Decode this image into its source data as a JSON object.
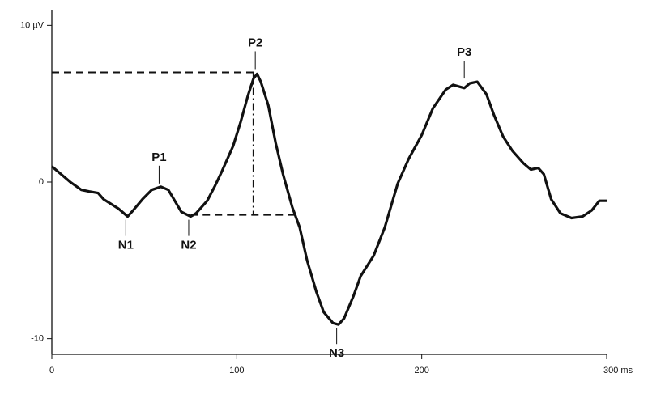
{
  "chart_data": {
    "type": "line",
    "x": [
      0,
      5,
      10,
      16,
      20,
      25,
      28,
      32,
      36,
      41,
      44,
      49,
      54,
      59,
      63,
      66,
      70,
      75,
      78,
      84,
      88,
      92,
      98,
      102,
      106,
      109,
      111,
      113,
      117,
      121,
      125,
      130,
      134,
      138,
      143,
      147,
      152,
      155,
      158,
      163,
      167,
      174,
      180,
      187,
      193,
      200,
      206,
      213,
      217,
      223,
      226,
      230,
      235,
      239,
      244,
      249,
      255,
      259,
      263,
      266,
      270,
      275,
      281,
      287,
      292,
      296,
      300
    ],
    "series": [
      {
        "color": "#111111",
        "values": [
          1.0,
          0.5,
          0,
          -0.5,
          -0.6,
          -0.7,
          -1.1,
          -1.4,
          -1.7,
          -2.2,
          -1.8,
          -1.1,
          -0.5,
          -0.3,
          -0.5,
          -1.1,
          -1.9,
          -2.2,
          -2.0,
          -1.2,
          -0.3,
          0.7,
          2.3,
          3.8,
          5.5,
          6.6,
          6.9,
          6.4,
          4.9,
          2.5,
          0.5,
          -1.6,
          -2.9,
          -5.0,
          -7.0,
          -8.3,
          -9.0,
          -9.1,
          -8.7,
          -7.3,
          -6.0,
          -4.7,
          -2.9,
          -0.1,
          1.5,
          3.0,
          4.7,
          5.9,
          6.2,
          6.0,
          6.3,
          6.4,
          5.6,
          4.3,
          2.9,
          2.0,
          1.2,
          0.8,
          0.9,
          0.5,
          -1.1,
          -2.0,
          -2.3,
          -2.2,
          -1.8,
          -1.2,
          -1.2
        ]
      }
    ],
    "xlim": [
      0,
      300
    ],
    "ylim": [
      -11,
      11
    ],
    "xticks": [
      0,
      100,
      200,
      {
        "value": 300,
        "label": "300 ms"
      }
    ],
    "yticks": [
      {
        "value": 10,
        "label": "10 µV"
      },
      0,
      -10
    ],
    "annotations": [
      {
        "text": "P1",
        "x": 58,
        "y": -0.3,
        "position": "above"
      },
      {
        "text": "P2",
        "x": 110,
        "y": 7.0,
        "position": "above"
      },
      {
        "text": "P3",
        "x": 223,
        "y": 6.4,
        "position": "above"
      },
      {
        "text": "N1",
        "x": 40,
        "y": -2.2,
        "position": "below"
      },
      {
        "text": "N2",
        "x": 74,
        "y": -2.2,
        "position": "below"
      },
      {
        "text": "N3",
        "x": 154,
        "y": -9.1,
        "position": "below"
      }
    ],
    "reference_lines": [
      {
        "x": [
          0,
          111
        ],
        "y": [
          7.0,
          7.0
        ],
        "style": "dashed"
      },
      {
        "x": [
          109,
          109
        ],
        "y": [
          7.0,
          -2.1
        ],
        "style": "dashdot"
      },
      {
        "x": [
          75,
          133
        ],
        "y": [
          -2.1,
          -2.1
        ],
        "style": "dashed"
      }
    ]
  }
}
